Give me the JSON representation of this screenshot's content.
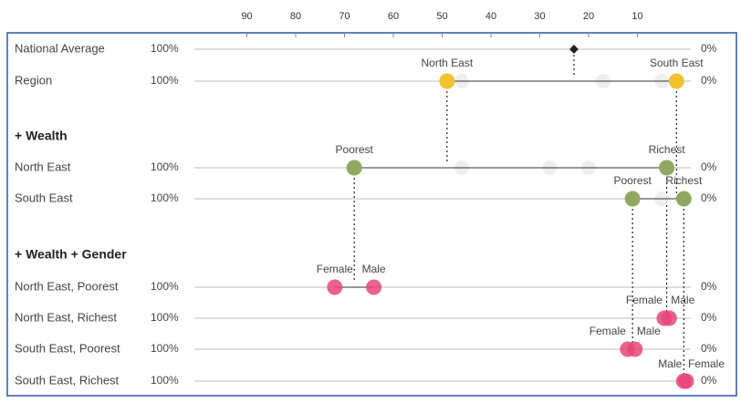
{
  "chart_data": {
    "type": "scatter",
    "title": "",
    "xlabel": "",
    "ylabel": "",
    "x_axis": {
      "direction": "reversed",
      "min": 0,
      "max": 100,
      "ticks": [
        90,
        80,
        70,
        60,
        50,
        40,
        30,
        20,
        10
      ],
      "left_label": "100%",
      "right_label": "0%"
    },
    "colors": {
      "national": "#222222",
      "region": "#F2C12E",
      "wealth": "#8FA860",
      "gender": "#E8457A",
      "ghost": "#EBEBEB",
      "line": "#BDBDBD",
      "frame": "#2B55A8"
    },
    "groups": [
      {
        "title": "",
        "rows": [
          "national",
          "region"
        ]
      },
      {
        "title": "+ Wealth",
        "rows": [
          "ne",
          "se"
        ]
      },
      {
        "title": "+ Wealth + Gender",
        "rows": [
          "nep",
          "ner",
          "sep",
          "ser"
        ]
      }
    ],
    "rows": [
      {
        "id": "national",
        "label": "National Average",
        "left": "100%",
        "right": "0%",
        "points": [
          {
            "name": "",
            "x": 23,
            "kind": "national"
          }
        ],
        "ghosts": []
      },
      {
        "id": "region",
        "label": "Region",
        "left": "100%",
        "right": "0%",
        "points": [
          {
            "name": "North East",
            "x": 49,
            "kind": "region"
          },
          {
            "name": "South East",
            "x": 2,
            "kind": "region"
          }
        ],
        "ghosts": [
          46,
          17,
          5
        ]
      },
      {
        "id": "ne",
        "label": "North East",
        "left": "100%",
        "right": "0%",
        "points": [
          {
            "name": "Poorest",
            "x": 68,
            "kind": "wealth"
          },
          {
            "name": "Richest",
            "x": 4,
            "kind": "wealth"
          }
        ],
        "ghosts": [
          46,
          28,
          20
        ]
      },
      {
        "id": "se",
        "label": "South East",
        "left": "100%",
        "right": "0%",
        "points": [
          {
            "name": "Poorest",
            "x": 11,
            "kind": "wealth"
          },
          {
            "name": "Richest",
            "x": 0.5,
            "kind": "wealth"
          }
        ],
        "ghosts": [
          5
        ]
      },
      {
        "id": "nep",
        "label": "North East, Poorest",
        "left": "100%",
        "right": "0%",
        "points": [
          {
            "name": "Female",
            "x": 72,
            "kind": "gender"
          },
          {
            "name": "Male",
            "x": 64,
            "kind": "gender"
          }
        ],
        "ghosts": []
      },
      {
        "id": "ner",
        "label": "North East, Richest",
        "left": "100%",
        "right": "0%",
        "points": [
          {
            "name": "Female",
            "x": 4.5,
            "kind": "gender"
          },
          {
            "name": "Male",
            "x": 3.5,
            "kind": "gender"
          }
        ],
        "ghosts": []
      },
      {
        "id": "sep",
        "label": "South East, Poorest",
        "left": "100%",
        "right": "0%",
        "points": [
          {
            "name": "Female",
            "x": 12,
            "kind": "gender"
          },
          {
            "name": "Male",
            "x": 10.5,
            "kind": "gender"
          }
        ],
        "ghosts": []
      },
      {
        "id": "ser",
        "label": "South East, Richest",
        "left": "100%",
        "right": "0%",
        "points": [
          {
            "name": "Male",
            "x": 0.5,
            "kind": "gender"
          },
          {
            "name": "Female",
            "x": 0,
            "kind": "gender"
          }
        ],
        "ghosts": []
      }
    ],
    "connectors": [
      {
        "from": "national",
        "to": "region",
        "x": 23
      },
      {
        "from": "region",
        "to": "ne",
        "x": 49
      },
      {
        "from": "region",
        "to": "se",
        "x": 2
      },
      {
        "from": "ne",
        "to": "nep",
        "x": 68
      },
      {
        "from": "ne",
        "to": "ner",
        "x": 4
      },
      {
        "from": "se",
        "to": "sep",
        "x": 11
      },
      {
        "from": "se",
        "to": "ser",
        "x": 0.5
      }
    ]
  }
}
